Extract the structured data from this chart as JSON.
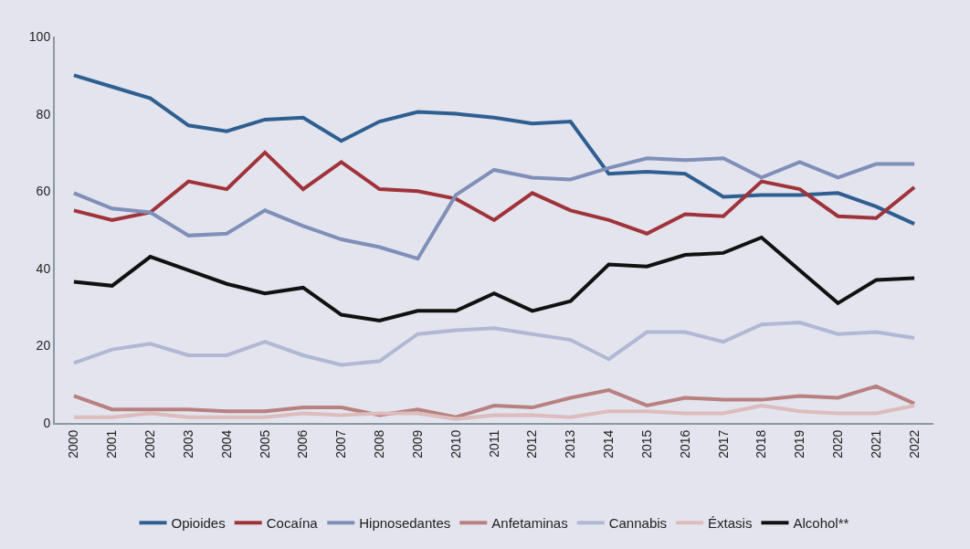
{
  "chart_data": {
    "type": "line",
    "categories": [
      "2000",
      "2001",
      "2002",
      "2003",
      "2004",
      "2005",
      "2006",
      "2007",
      "2008",
      "2009",
      "2010",
      "2011",
      "2012",
      "2013",
      "2014",
      "2015",
      "2016",
      "2017",
      "2018",
      "2019",
      "2020",
      "2021",
      "2022"
    ],
    "ylim": [
      0,
      100
    ],
    "yticks": [
      0,
      20,
      40,
      60,
      80,
      100
    ],
    "grid": false,
    "legend": "bottom",
    "marker": "none",
    "line_style": "solid",
    "series": [
      {
        "name": "Opioides",
        "color": "#2f5f91",
        "values": [
          90,
          87,
          84,
          77,
          75.5,
          78.5,
          79,
          73,
          78,
          80.5,
          80,
          79,
          77.5,
          78,
          64.5,
          65,
          64.5,
          58.5,
          59,
          59,
          59.5,
          56,
          51.5
        ]
      },
      {
        "name": "Cocaína",
        "color": "#a0333a",
        "values": [
          55,
          52.5,
          54.5,
          62.5,
          60.5,
          70,
          60.5,
          67.5,
          60.5,
          60,
          58,
          52.5,
          59.5,
          55,
          52.5,
          49,
          54,
          53.5,
          62.5,
          60.5,
          53.5,
          53,
          61
        ]
      },
      {
        "name": "Hipnosedantes",
        "color": "#7f8fb8",
        "values": [
          59.5,
          55.5,
          54.5,
          48.5,
          49,
          55,
          51,
          47.5,
          45.5,
          42.5,
          59,
          65.5,
          63.5,
          63,
          66,
          68.5,
          68,
          68.5,
          63.5,
          67.5,
          63.5,
          67,
          67
        ]
      },
      {
        "name": "Anfetaminas",
        "color": "#b98080",
        "values": [
          7,
          3.5,
          3.5,
          3.5,
          3,
          3,
          4,
          4,
          2,
          3.5,
          1.5,
          4.5,
          4,
          6.5,
          8.5,
          4.5,
          6.5,
          6,
          6,
          7,
          6.5,
          9.5,
          5
        ]
      },
      {
        "name": "Cannabis",
        "color": "#b0b8d6",
        "values": [
          15.5,
          19,
          20.5,
          17.5,
          17.5,
          21,
          17.5,
          15,
          16,
          23,
          24,
          24.5,
          23,
          21.5,
          16.5,
          23.5,
          23.5,
          21,
          25.5,
          26,
          23,
          23.5,
          22
        ]
      },
      {
        "name": "Éxtasis",
        "color": "#dcbcbc",
        "values": [
          1.5,
          1.5,
          2.5,
          1.5,
          1.5,
          1.5,
          2.5,
          2,
          2.5,
          2.5,
          1,
          2,
          2,
          1.5,
          3,
          3,
          2.5,
          2.5,
          4.5,
          3,
          2.5,
          2.5,
          4.5
        ]
      },
      {
        "name": "Alcohol**",
        "color": "#111111",
        "values": [
          36.5,
          35.5,
          43,
          39.5,
          36,
          33.5,
          35,
          28,
          26.5,
          29,
          29,
          33.5,
          29,
          31.5,
          41,
          40.5,
          43.5,
          44,
          48,
          39.5,
          31,
          37,
          37.5
        ]
      }
    ]
  }
}
